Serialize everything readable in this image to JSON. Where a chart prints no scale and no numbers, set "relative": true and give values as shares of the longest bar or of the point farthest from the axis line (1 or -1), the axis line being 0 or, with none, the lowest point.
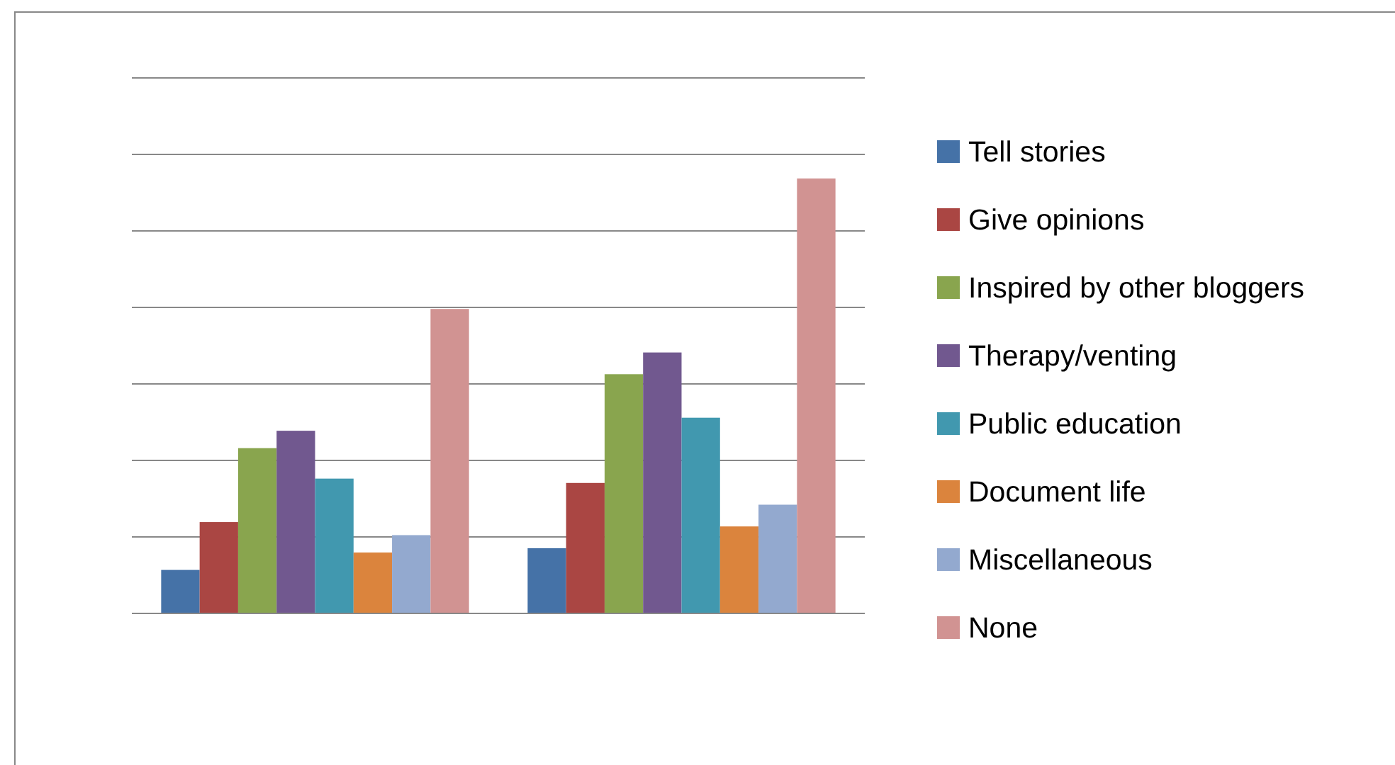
{
  "chart_data": {
    "type": "bar",
    "relative": true,
    "grid": true,
    "legend": "right",
    "categories": [
      null,
      null
    ],
    "series": [
      {
        "name": "Tell stories",
        "color": "#4572a7",
        "values": [
          0.1,
          0.15
        ]
      },
      {
        "name": "Give opinions",
        "color": "#aa4643",
        "values": [
          0.21,
          0.3
        ]
      },
      {
        "name": "Inspired by other bloggers",
        "color": "#89a54e",
        "values": [
          0.38,
          0.55
        ]
      },
      {
        "name": "Therapy/venting",
        "color": "#71588f",
        "values": [
          0.42,
          0.6
        ]
      },
      {
        "name": "Public education",
        "color": "#4198af",
        "values": [
          0.31,
          0.45
        ]
      },
      {
        "name": "Document life",
        "color": "#db843d",
        "values": [
          0.14,
          0.2
        ]
      },
      {
        "name": "Miscellaneous",
        "color": "#93a9cf",
        "values": [
          0.18,
          0.25
        ]
      },
      {
        "name": "None",
        "color": "#d19392",
        "values": [
          0.7,
          1
        ]
      }
    ]
  }
}
